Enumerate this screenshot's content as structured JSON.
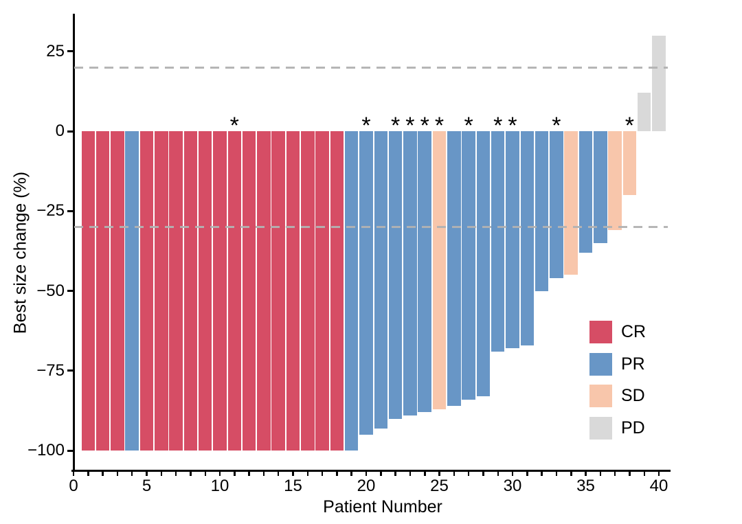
{
  "chart_data": {
    "type": "bar",
    "subtype": "waterfall",
    "title": "",
    "xlabel": "Patient Number",
    "ylabel": "Best size change (%)",
    "ylim": [
      -111,
      38
    ],
    "xlim": [
      0,
      41
    ],
    "grid": false,
    "legend_position": "inside-right",
    "y_ticks": [
      {
        "label": "25",
        "value": 25
      },
      {
        "label": "0",
        "value": 0
      },
      {
        "label": "−25",
        "value": -25
      },
      {
        "label": "−50",
        "value": -50
      },
      {
        "label": "−75",
        "value": -75
      },
      {
        "label": "−100",
        "value": -100
      }
    ],
    "x_minor_ticks": {
      "from": 0,
      "to": 40,
      "step": 1
    },
    "x_tick_labels": [
      {
        "label": "0",
        "value": 0
      },
      {
        "label": "5",
        "value": 5
      },
      {
        "label": "10",
        "value": 10
      },
      {
        "label": "15",
        "value": 15
      },
      {
        "label": "20",
        "value": 20
      },
      {
        "label": "25",
        "value": 25
      },
      {
        "label": "30",
        "value": 30
      },
      {
        "label": "35",
        "value": 35
      },
      {
        "label": "40",
        "value": 40
      }
    ],
    "reference_lines": [
      20,
      -30
    ],
    "annotation_symbol": "*",
    "legend": [
      {
        "label": "CR",
        "color": "#D64D65"
      },
      {
        "label": "PR",
        "color": "#6896C6"
      },
      {
        "label": "SD",
        "color": "#F8C6AB"
      },
      {
        "label": "PD",
        "color": "#D9D9D9"
      }
    ],
    "patients": [
      {
        "patient": 1,
        "value": -100,
        "response": "CR",
        "asterisk": false
      },
      {
        "patient": 2,
        "value": -100,
        "response": "CR",
        "asterisk": false
      },
      {
        "patient": 3,
        "value": -100,
        "response": "CR",
        "asterisk": false
      },
      {
        "patient": 4,
        "value": -100,
        "response": "PR",
        "asterisk": false
      },
      {
        "patient": 5,
        "value": -100,
        "response": "CR",
        "asterisk": false
      },
      {
        "patient": 6,
        "value": -100,
        "response": "CR",
        "asterisk": false
      },
      {
        "patient": 7,
        "value": -100,
        "response": "CR",
        "asterisk": false
      },
      {
        "patient": 8,
        "value": -100,
        "response": "CR",
        "asterisk": false
      },
      {
        "patient": 9,
        "value": -100,
        "response": "CR",
        "asterisk": false
      },
      {
        "patient": 10,
        "value": -100,
        "response": "CR",
        "asterisk": false
      },
      {
        "patient": 11,
        "value": -100,
        "response": "CR",
        "asterisk": true
      },
      {
        "patient": 12,
        "value": -100,
        "response": "CR",
        "asterisk": false
      },
      {
        "patient": 13,
        "value": -100,
        "response": "CR",
        "asterisk": false
      },
      {
        "patient": 14,
        "value": -100,
        "response": "CR",
        "asterisk": false
      },
      {
        "patient": 15,
        "value": -100,
        "response": "CR",
        "asterisk": false
      },
      {
        "patient": 16,
        "value": -100,
        "response": "CR",
        "asterisk": false
      },
      {
        "patient": 17,
        "value": -100,
        "response": "CR",
        "asterisk": false
      },
      {
        "patient": 18,
        "value": -100,
        "response": "CR",
        "asterisk": false
      },
      {
        "patient": 19,
        "value": -100,
        "response": "PR",
        "asterisk": false
      },
      {
        "patient": 20,
        "value": -95,
        "response": "PR",
        "asterisk": true
      },
      {
        "patient": 21,
        "value": -93,
        "response": "PR",
        "asterisk": false
      },
      {
        "patient": 22,
        "value": -90,
        "response": "PR",
        "asterisk": true
      },
      {
        "patient": 23,
        "value": -89,
        "response": "PR",
        "asterisk": true
      },
      {
        "patient": 24,
        "value": -88,
        "response": "PR",
        "asterisk": true
      },
      {
        "patient": 25,
        "value": -87,
        "response": "SD",
        "asterisk": true
      },
      {
        "patient": 26,
        "value": -86,
        "response": "PR",
        "asterisk": false
      },
      {
        "patient": 27,
        "value": -84,
        "response": "PR",
        "asterisk": true
      },
      {
        "patient": 28,
        "value": -83,
        "response": "PR",
        "asterisk": false
      },
      {
        "patient": 29,
        "value": -69,
        "response": "PR",
        "asterisk": true
      },
      {
        "patient": 30,
        "value": -68,
        "response": "PR",
        "asterisk": true
      },
      {
        "patient": 31,
        "value": -67,
        "response": "PR",
        "asterisk": false
      },
      {
        "patient": 32,
        "value": -50,
        "response": "PR",
        "asterisk": false
      },
      {
        "patient": 33,
        "value": -46,
        "response": "PR",
        "asterisk": true
      },
      {
        "patient": 34,
        "value": -45,
        "response": "SD",
        "asterisk": false
      },
      {
        "patient": 35,
        "value": -38,
        "response": "PR",
        "asterisk": false
      },
      {
        "patient": 36,
        "value": -35,
        "response": "PR",
        "asterisk": false
      },
      {
        "patient": 37,
        "value": -31,
        "response": "SD",
        "asterisk": false
      },
      {
        "patient": 38,
        "value": -20,
        "response": "SD",
        "asterisk": true
      },
      {
        "patient": 39,
        "value": 12,
        "response": "PD",
        "asterisk": false
      },
      {
        "patient": 40,
        "value": 30,
        "response": "PD",
        "asterisk": false
      }
    ]
  },
  "colors": {
    "axis": "#000000",
    "text": "#000000",
    "dashed_reference": "#B2B2B2",
    "background": "#FFFFFF"
  }
}
